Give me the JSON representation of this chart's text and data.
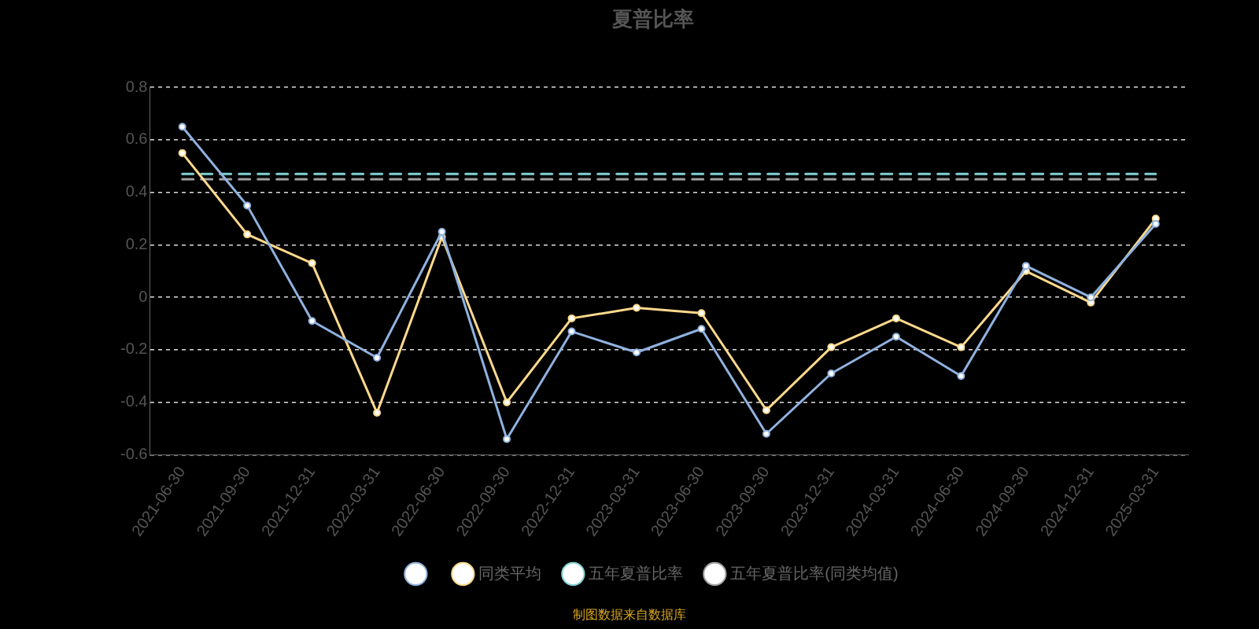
{
  "chart_data": {
    "type": "line",
    "title": "夏普比率",
    "categories": [
      "2021-06-30",
      "2021-09-30",
      "2021-12-31",
      "2022-03-31",
      "2022-06-30",
      "2022-09-30",
      "2022-12-31",
      "2023-03-31",
      "2023-06-30",
      "2023-09-30",
      "2023-12-31",
      "2024-03-31",
      "2024-06-30",
      "2024-09-30",
      "2024-12-31",
      "2025-03-31"
    ],
    "series": [
      {
        "color": "#8fb2e0",
        "marker": "circle",
        "line_style": "solid",
        "values": [
          0.65,
          0.35,
          -0.09,
          -0.23,
          0.25,
          -0.54,
          -0.13,
          -0.21,
          -0.12,
          -0.52,
          -0.29,
          -0.15,
          -0.3,
          0.12,
          0,
          0.28
        ]
      },
      {
        "name": "同类平均",
        "color": "#ffd98c",
        "marker": "circle",
        "line_style": "solid",
        "values": [
          0.55,
          0.24,
          0.13,
          -0.44,
          0.23,
          -0.4,
          -0.08,
          -0.04,
          -0.06,
          -0.43,
          -0.19,
          -0.08,
          -0.19,
          0.1,
          -0.02,
          0.3
        ]
      },
      {
        "name": "五年夏普比率",
        "color": "#7fd1d4",
        "marker": "none",
        "line_style": "dashed",
        "values": [
          0.47,
          0.47,
          0.47,
          0.47,
          0.47,
          0.47,
          0.47,
          0.47,
          0.47,
          0.47,
          0.47,
          0.47,
          0.47,
          0.47,
          0.47,
          0.47
        ]
      },
      {
        "name": "五年夏普比率(同类均值)",
        "color": "#a0a0a0",
        "marker": "none",
        "line_style": "dashed",
        "values": [
          0.45,
          0.45,
          0.45,
          0.45,
          0.45,
          0.45,
          0.45,
          0.45,
          0.45,
          0.45,
          0.45,
          0.45,
          0.45,
          0.45,
          0.45,
          0.45
        ]
      }
    ],
    "ylim": [
      -0.6,
      0.8
    ],
    "yticks": [
      -0.6,
      -0.4,
      -0.2,
      0,
      0.2,
      0.4,
      0.6,
      0.8
    ],
    "grid": "y",
    "legend": "bottom",
    "annotations": [
      "制图数据来自数据库"
    ]
  }
}
